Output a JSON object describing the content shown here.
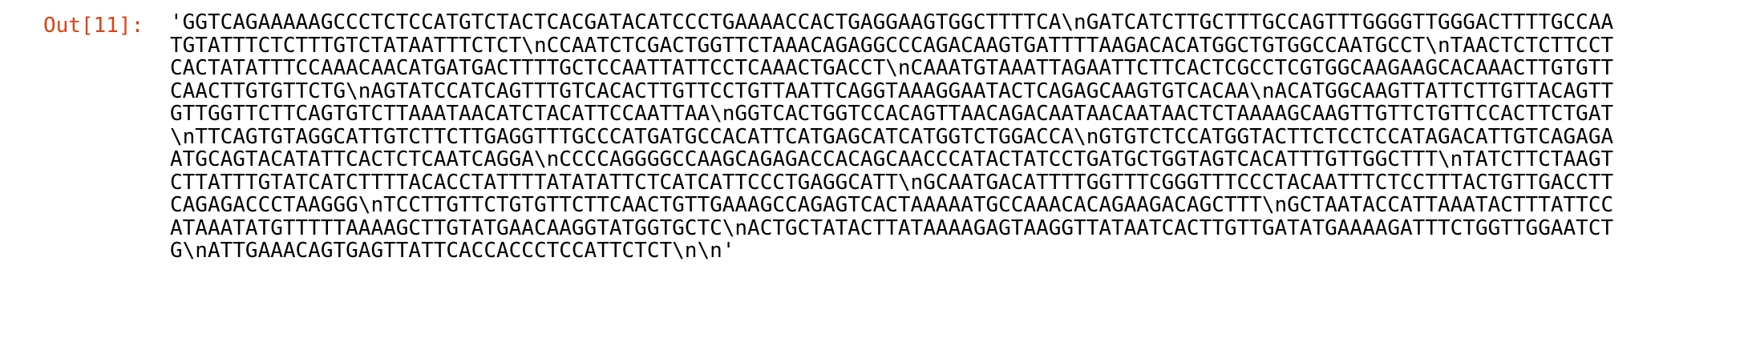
{
  "cell": {
    "prompt": "Out[11]:",
    "prompt_color": "#d84315",
    "lines": [
      "'GGTCAGAAAAAGCCCTCTCCATGTCTACTCACGATACATCCCTGAAAACCACTGAGGAAGTGGCTTTTCA\\nGATCATCTTGCTTTGCCAGTTTGGGGTTGGGACTTTTGCCAA",
      "TGTATTTCTCTTTGTCTATAATTTCTCT\\nCCAATCTCGACTGGTTCTAAACAGAGGCCCAGACAAGTGATTTTAAGACACATGGCTGTGGCCAATGCCT\\nTAACTCTCTTCCT",
      "CACTATATTTCCAAACAACATGATGACTTTTGCTCCAATTATTCCTCAAACTGACCT\\nCAAATGTAAATTAGAATTCTTCACTCGCCTCGTGGCAAGAAGCACAAACTTGTGTT",
      "CAACTTGTGTTCTG\\nAGTATCCATCAGTTTGTCACACTTGTTCCTGTTAATTCAGGTAAAGGAATACTCAGAGCAAGTGTCACAA\\nACATGGCAAGTTATTCTTGTTACAGTT",
      "GTTGGTTCTTCAGTGTCTTAAATAACATCTACATTCCAATTAA\\nGGTCACTGGTCCACAGTTAACAGACAATAACAATAACTCTAAAAGCAAGTTGTTCTGTTCCACTTCTGAT",
      "\\nTTCAGTGTAGGCATTGTCTTCTTGAGGTTTGCCCATGATGCCACATTCATGAGCATCATGGTCTGGACCA\\nGTGTCTCCATGGTACTTCTCCTCCATAGACATTGTCAGAGA",
      "ATGCAGTACATATTCACTCTCAATCAGGA\\nCCCCAGGGGCCAAGCAGAGACCACAGCAACCCATACTATCCTGATGCTGGTAGTCACATTTGTTGGCTTT\\nTATCTTCTAAGT",
      "CTTATTTGTATCATCTTTTACACCTATTTTATATATTCTCATCATTCCCTGAGGCATT\\nGCAATGACATTTTGGTTTCGGGTTTCCCTACAATTTCTCCTTTACTGTTGACCTT",
      "CAGAGACCCTAAGGG\\nTCCTTGTTCTGTGTTCTTCAACTGTTGAAAGCCAGAGTCACTAAAAATGCCAAACACAGAAGACAGCTTT\\nGCTAATACCATTAAATACTTTATTCC",
      "ATAAATATGTTTTTAAAAGCTTGTATGAACAAGGTATGGTGCTC\\nACTGCTATACTTATAAAAGAGTAAGGTTATAATCACTTGTTGATATGAAAAGATTTCTGGTTGGAATCT",
      "G\\nATTGAAACAGTGAGTTATTCACCACCCTCCATTCTCT\\n\\n'"
    ]
  }
}
